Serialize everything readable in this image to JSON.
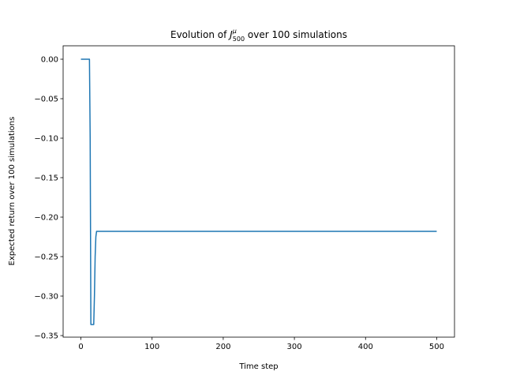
{
  "chart_data": {
    "type": "line",
    "title": {
      "prefix": "Evolution of ",
      "symbol": "J",
      "superscript": "μ",
      "subscript": "500",
      "suffix": " over 100 simulations"
    },
    "xlabel": "Time step",
    "ylabel": "Expected return over 100 simulations",
    "xlim": [
      -25,
      525
    ],
    "ylim": [
      -0.352,
      0.017
    ],
    "xticks": [
      0,
      100,
      200,
      300,
      400,
      500
    ],
    "xtick_labels": [
      "0",
      "100",
      "200",
      "300",
      "400",
      "500"
    ],
    "yticks": [
      0.0,
      -0.05,
      -0.1,
      -0.15,
      -0.2,
      -0.25,
      -0.3,
      -0.35
    ],
    "ytick_labels": [
      "0.00",
      "−0.05",
      "−0.10",
      "−0.15",
      "−0.20",
      "−0.25",
      "−0.30",
      "−0.35"
    ],
    "grid": false,
    "color": "#1f77b4",
    "series": [
      {
        "x": [
          0,
          12,
          13,
          14,
          15,
          16,
          17,
          18,
          19,
          20,
          21,
          22,
          500
        ],
        "y": [
          0.0,
          0.0,
          -0.1,
          -0.336,
          -0.336,
          -0.336,
          -0.336,
          -0.336,
          -0.3,
          -0.25,
          -0.225,
          -0.218,
          -0.218
        ]
      }
    ]
  }
}
